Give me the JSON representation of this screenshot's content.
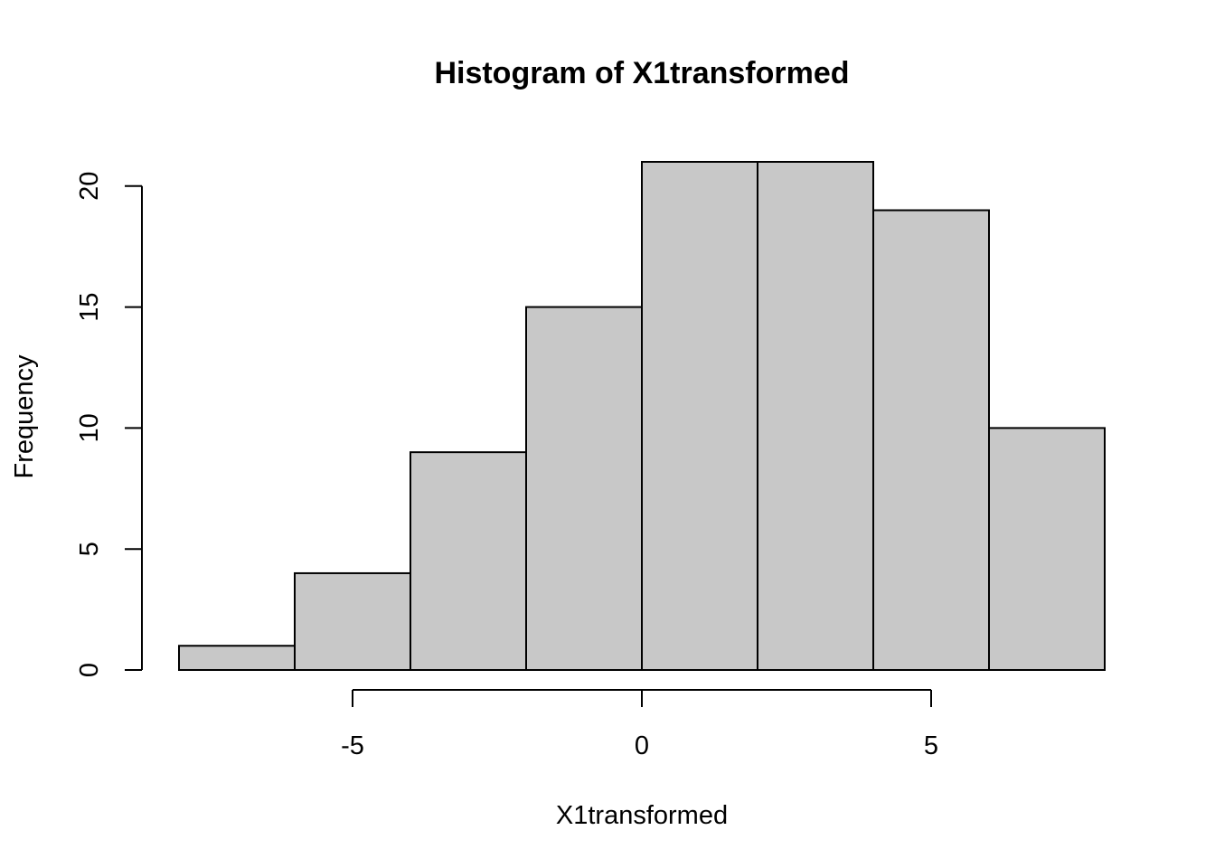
{
  "chart_data": {
    "type": "bar",
    "title": "Histogram of X1transformed",
    "xlabel": "X1transformed",
    "ylabel": "Frequency",
    "bins": [
      {
        "x0": -8,
        "x1": -6,
        "count": 1
      },
      {
        "x0": -6,
        "x1": -4,
        "count": 4
      },
      {
        "x0": -4,
        "x1": -2,
        "count": 9
      },
      {
        "x0": -2,
        "x1": 0,
        "count": 15
      },
      {
        "x0": 0,
        "x1": 2,
        "count": 21
      },
      {
        "x0": 2,
        "x1": 4,
        "count": 21
      },
      {
        "x0": 4,
        "x1": 6,
        "count": 19
      },
      {
        "x0": 6,
        "x1": 8,
        "count": 10
      }
    ],
    "xlim": [
      -8,
      8
    ],
    "ylim": [
      0,
      21
    ],
    "x_ticks": [
      -5,
      0,
      5
    ],
    "x_tick_labels": [
      "-5",
      "0",
      "5"
    ],
    "y_ticks": [
      0,
      5,
      10,
      15,
      20
    ],
    "y_tick_labels": [
      "0",
      "5",
      "10",
      "15",
      "20"
    ],
    "bar_color": "#c8c8c8",
    "grid": false
  }
}
